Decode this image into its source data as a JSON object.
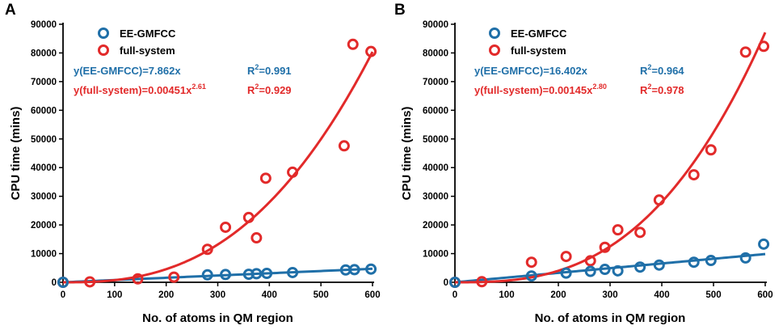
{
  "panels": [
    {
      "letter": "A",
      "chart_data": {
        "type": "scatter",
        "xlabel": "No. of atoms in QM region",
        "ylabel": "CPU time (mins)",
        "xlim": [
          0,
          600
        ],
        "ylim": [
          0,
          90000
        ],
        "xticks": [
          0,
          100,
          200,
          300,
          400,
          500,
          600
        ],
        "yticks": [
          0,
          10000,
          20000,
          30000,
          40000,
          50000,
          60000,
          70000,
          80000,
          90000
        ],
        "legend_position": "top-left",
        "series": [
          {
            "name": "EE-GMFCC",
            "color": "#1f6fa8",
            "x": [
              0,
              280,
              315,
              360,
              375,
              395,
              445,
              548,
              565,
              597
            ],
            "y": [
              0,
              2600,
              2700,
              2800,
              3000,
              3100,
              3400,
              4300,
              4400,
              4600
            ],
            "fit": {
              "label": "y(EE-GMFCC)=7.862x",
              "r2_label": "R",
              "r2_value": "=0.991",
              "a": 7.862,
              "b": 1
            }
          },
          {
            "name": "full-system",
            "color": "#e22a2a",
            "x": [
              0,
              52,
              145,
              215,
              280,
              315,
              360,
              375,
              393,
              445,
              545,
              562,
              597
            ],
            "y": [
              0,
              150,
              1200,
              1800,
              11500,
              19200,
              22600,
              15500,
              36300,
              38400,
              47600,
              83000,
              80500
            ],
            "fit": {
              "prefix": "y(full-system)=0.00451x",
              "exponent": "2.61",
              "r2_label": "R",
              "r2_value": "=0.929",
              "a": 0.00451,
              "b": 2.61
            }
          }
        ]
      }
    },
    {
      "letter": "B",
      "chart_data": {
        "type": "scatter",
        "xlabel": "No. of atoms in QM region",
        "ylabel": "CPU time (mins)",
        "xlim": [
          0,
          600
        ],
        "ylim": [
          0,
          90000
        ],
        "xticks": [
          0,
          100,
          200,
          300,
          400,
          500,
          600
        ],
        "yticks": [
          0,
          10000,
          20000,
          30000,
          40000,
          50000,
          60000,
          70000,
          80000,
          90000
        ],
        "legend_position": "top-left",
        "series": [
          {
            "name": "EE-GMFCC",
            "color": "#1f6fa8",
            "x": [
              0,
              148,
              215,
              262,
              290,
              315,
              358,
              395,
              462,
              495,
              562,
              597
            ],
            "y": [
              0,
              2200,
              3200,
              3800,
              4500,
              4000,
              5300,
              6000,
              7000,
              7600,
              8500,
              13300
            ],
            "fit": {
              "label": "y(EE-GMFCC)=16.402x",
              "r2_label": "R",
              "r2_value": "=0.964",
              "a": 16.402,
              "b": 1
            }
          },
          {
            "name": "full-system",
            "color": "#e22a2a",
            "x": [
              0,
              52,
              148,
              215,
              262,
              290,
              315,
              358,
              395,
              462,
              495,
              562,
              597
            ],
            "y": [
              0,
              200,
              7000,
              9000,
              7500,
              12200,
              18300,
              17400,
              28700,
              37500,
              46200,
              80300,
              82300
            ],
            "fit": {
              "prefix": "y(full-system)=0.00145x",
              "exponent": "2.80",
              "r2_label": "R",
              "r2_value": "=0.978",
              "a": 0.00145,
              "b": 2.8
            }
          }
        ]
      }
    }
  ]
}
